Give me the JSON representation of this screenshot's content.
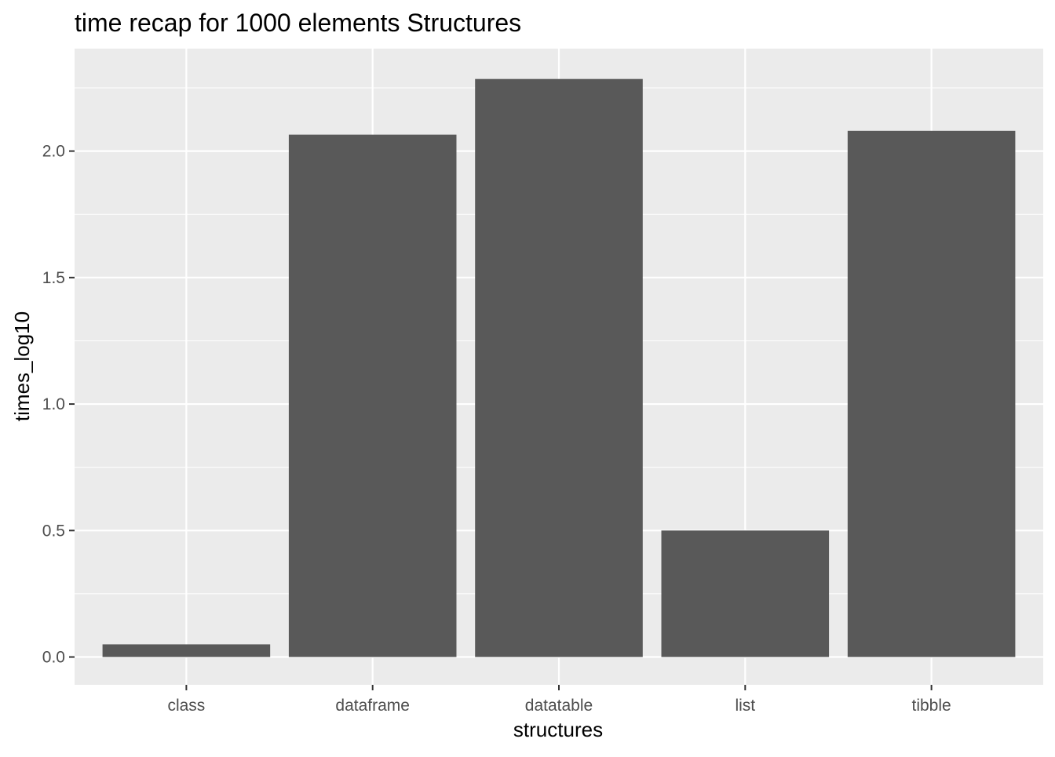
{
  "chart_data": {
    "type": "bar",
    "title": "time recap for  1000  elements Structures",
    "xlabel": "structures",
    "ylabel": "times_log10",
    "categories": [
      "class",
      "dataframe",
      "datatable",
      "list",
      "tibble"
    ],
    "values": [
      0.05,
      2.065,
      2.285,
      0.5,
      2.08
    ],
    "ylim": [
      -0.11,
      2.405
    ],
    "yticks": [
      0.0,
      0.5,
      1.0,
      1.5,
      2.0
    ],
    "ytick_labels": [
      "0.0",
      "0.5",
      "1.0",
      "1.5",
      "2.0"
    ],
    "grid": true,
    "legend": "none",
    "colors": {
      "panel_background": "#ebebeb",
      "grid_major": "#ffffff",
      "grid_minor": "#f7f7f7",
      "bar_fill": "#595959",
      "tick_mark": "#333333",
      "tick_label": "#4d4d4d"
    }
  }
}
